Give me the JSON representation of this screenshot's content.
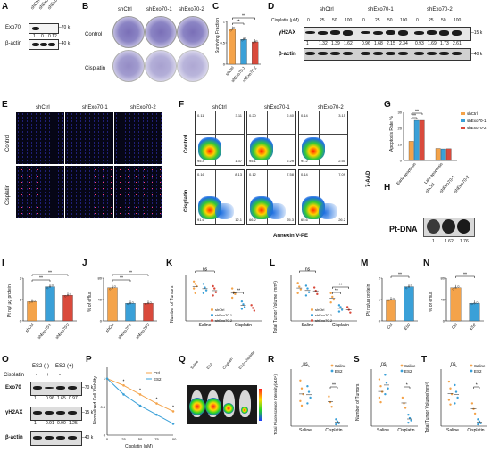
{
  "panels": {
    "A": "A",
    "B": "B",
    "C": "C",
    "D": "D",
    "E": "E",
    "F": "F",
    "G": "G",
    "H": "H",
    "I": "I",
    "J": "J",
    "K": "K",
    "L": "L",
    "M": "M",
    "N": "N",
    "O": "O",
    "P": "P",
    "Q": "Q",
    "R": "R",
    "S": "S",
    "T": "T"
  },
  "groups": {
    "ctrl": "shCtrl",
    "kd1": "shExo70-1",
    "kd2": "shExo70-2"
  },
  "panel_a": {
    "row1": "Exo70",
    "row2": "β-actin",
    "mw1": "70 k",
    "mw2": "40 k",
    "q": [
      "1",
      "0",
      "0.12"
    ]
  },
  "panel_b": {
    "row1": "Control",
    "row2": "Cisplatin"
  },
  "panel_c": {
    "ylabel": "Surviving Fraction",
    "sig1": "**",
    "sig2": "**"
  },
  "panel_d": {
    "dose_label": "Cisplatin (μM)",
    "doses": [
      "0",
      "25",
      "50",
      "100"
    ],
    "row1": "γH2AX",
    "row2": "β-actin",
    "mw1": "15 k",
    "mw2": "40 k",
    "q": [
      [
        "1",
        "1.32",
        "1.39",
        "1.62"
      ],
      [
        "0.96",
        "1.68",
        "2.15",
        "2.34"
      ],
      [
        "0.93",
        "1.69",
        "1.73",
        "2.61"
      ]
    ]
  },
  "panel_e": {
    "row1": "Control",
    "row2": "Cisplatin"
  },
  "panel_f": {
    "row1": "Control",
    "row2": "Cisplatin",
    "ylabel": "7-AAD",
    "xlabel": "Annexin V-PE",
    "quads": [
      [
        "0.11",
        "3.11",
        "95.4",
        "1.37"
      ],
      [
        "0.20",
        "2.40",
        "95.1",
        "2.29"
      ],
      [
        "0.14",
        "3.15",
        "94.2",
        "2.50"
      ],
      [
        "0.16",
        "8.13",
        "91.6",
        "12.1"
      ],
      [
        "0.12",
        "7.58",
        "66.2",
        "25.3"
      ],
      [
        "0.14",
        "7.09",
        "65.6",
        "26.2"
      ]
    ]
  },
  "panel_g": {
    "ylabel": "Apoptosis Rate %",
    "cat1": "Early apoptosis",
    "cat2": "Late apoptosis",
    "sig1": "**",
    "sig2": "**"
  },
  "panel_h": {
    "label": "Pt-DNA",
    "q": [
      "1",
      "1.62",
      "1.76"
    ]
  },
  "panel_i": {
    "ylabel": "Pt ng/ μg protein",
    "sig1": "**",
    "sig2": "**"
  },
  "panel_j": {
    "ylabel": "% of efflux",
    "sig1": "**",
    "sig2": "**"
  },
  "panel_k": {
    "ylabel": "Number of Tumors",
    "cat1": "Saline",
    "cat2": "Cisplatin",
    "ns": "ns",
    "sig": "**"
  },
  "panel_l": {
    "ylabel": "Total Tumor Volume (mm³)",
    "cat1": "Saline",
    "cat2": "Cisplatin",
    "ns": "ns",
    "sig1": "**",
    "sig2": "**"
  },
  "panel_m": {
    "ylabel": "Pt ng/μg protein",
    "cat1": "Ctrl",
    "cat2": "ES2",
    "sig": "**"
  },
  "panel_n": {
    "ylabel": "% of efflux",
    "cat1": "Ctrl",
    "cat2": "ES2",
    "sig": "**"
  },
  "panel_o": {
    "drug": "Cisplatin",
    "h1": "ES2 (-)",
    "h2": "ES2 (+)",
    "signs": [
      "-",
      "+",
      "-",
      "+"
    ],
    "row1": "Exo70",
    "row2": "γH2AX",
    "row3": "β-actin",
    "mw1": "70 k",
    "mw2": "15 k",
    "mw3": "40 k",
    "q1": [
      "1",
      "0.96",
      "1.65",
      "0.97"
    ],
    "q2": [
      "1",
      "0.91",
      "0.90",
      "1.25"
    ]
  },
  "panel_p": {
    "ylabel": "Normalized Cell Viability",
    "xlabel": "Cisplatin (μM)",
    "legend": [
      "Ctrl",
      "ES2"
    ],
    "xticks": [
      "0",
      "25",
      "50",
      "75",
      "100"
    ],
    "sig": [
      "*",
      "*",
      "*",
      "*"
    ]
  },
  "panel_q": {
    "labels": [
      "Saline",
      "ES2",
      "Cisplatin",
      "ES2+Cisplatin"
    ]
  },
  "panel_r": {
    "ylabel": "Total Fluorescence Intensity(x10⁹)",
    "cat1": "Saline",
    "cat2": "Cisplatin",
    "legend": [
      "Saline",
      "ES2"
    ],
    "ns": "ns",
    "sig": "**"
  },
  "panel_s": {
    "ylabel": "Number of Tumors",
    "cat1": "Saline",
    "cat2": "Cisplatin",
    "legend": [
      "Saline",
      "ES2"
    ],
    "ns": "ns",
    "sig": "*"
  },
  "panel_t": {
    "ylabel": "Total Tumor Volume(mm³)",
    "cat1": "Saline",
    "cat2": "Cisplatin",
    "legend": [
      "Saline",
      "ES2"
    ],
    "ns": "ns",
    "sig": "*"
  },
  "colors": {
    "ctrl": "#f4a34a",
    "kd1": "#3aa0d8",
    "kd2": "#d94a3c",
    "es2": "#3aa0d8"
  },
  "chart_data": [
    {
      "type": "bar",
      "panel": "C",
      "categories": [
        "shCtrl",
        "shExo70-1",
        "shExo70-2"
      ],
      "values": [
        0.82,
        0.58,
        0.52
      ],
      "ylim": [
        0,
        1
      ]
    },
    {
      "type": "bar",
      "panel": "G",
      "categories": [
        "Early apoptosis",
        "Late apoptosis"
      ],
      "series": [
        {
          "name": "shCtrl",
          "values": [
            12,
            7.5
          ]
        },
        {
          "name": "shExo70-1",
          "values": [
            25,
            7.2
          ]
        },
        {
          "name": "shExo70-2",
          "values": [
            25,
            7.3
          ]
        }
      ],
      "ylim": [
        0,
        30
      ]
    },
    {
      "type": "bar",
      "panel": "I",
      "categories": [
        "shCtrl",
        "shExo70-1",
        "shExo70-2"
      ],
      "values": [
        0.9,
        1.6,
        1.2
      ],
      "ylim": [
        0,
        2
      ]
    },
    {
      "type": "bar",
      "panel": "J",
      "categories": [
        "shCtrl",
        "shExo70-1",
        "shExo70-2"
      ],
      "values": [
        62,
        33,
        33
      ],
      "ylim": [
        0,
        80
      ]
    },
    {
      "type": "bar",
      "panel": "M",
      "categories": [
        "Ctrl",
        "ES2"
      ],
      "values": [
        1.0,
        1.6
      ],
      "ylim": [
        0,
        2
      ]
    },
    {
      "type": "bar",
      "panel": "N",
      "categories": [
        "Ctrl",
        "ES2"
      ],
      "values": [
        62,
        33
      ],
      "ylim": [
        0,
        80
      ]
    },
    {
      "type": "line",
      "panel": "P",
      "x": [
        0,
        25,
        50,
        75,
        100
      ],
      "series": [
        {
          "name": "Ctrl",
          "values": [
            1.0,
            0.88,
            0.72,
            0.56,
            0.42
          ]
        },
        {
          "name": "ES2",
          "values": [
            1.0,
            0.72,
            0.52,
            0.36,
            0.2
          ]
        }
      ],
      "ylim": [
        0,
        1.2
      ]
    }
  ]
}
